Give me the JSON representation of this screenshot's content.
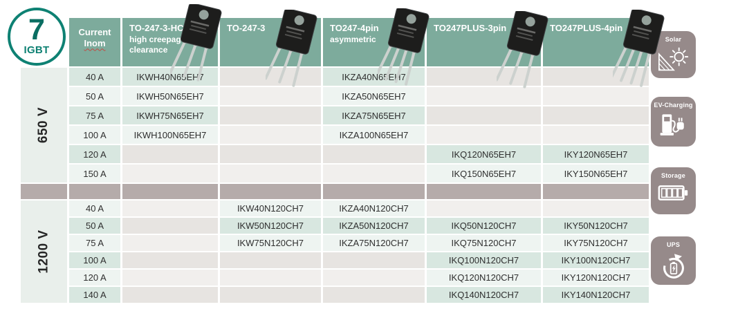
{
  "badge": {
    "number": "7",
    "label": "IGBT"
  },
  "table": {
    "header": {
      "current_line1": "Current",
      "current_line2": "Inom"
    },
    "columns": [
      {
        "id": "to-247-3-hcc",
        "label": "TO-247-3-HCC",
        "sublines": [
          "high creepage,",
          "high clearance"
        ],
        "pins": 3
      },
      {
        "id": "to-247-3",
        "label": "TO-247-3",
        "sublines": [],
        "pins": 3
      },
      {
        "id": "to247-4pin",
        "label": "TO247-4pin",
        "sublines": [
          "asymmetric"
        ],
        "pins": 4
      },
      {
        "id": "to247plus-3pin",
        "label": "TO247PLUS-3pin",
        "sublines": [],
        "pins": 3
      },
      {
        "id": "to247plus-4pin",
        "label": "TO247PLUS-4pin",
        "sublines": [],
        "pins": 4
      }
    ],
    "sections": [
      {
        "voltage": "650 V",
        "rows": [
          {
            "current": "40 A",
            "parts": [
              "IKWH40N65EH7",
              "",
              "IKZA40N65EH7",
              "",
              ""
            ]
          },
          {
            "current": "50 A",
            "parts": [
              "IKWH50N65EH7",
              "",
              "IKZA50N65EH7",
              "",
              ""
            ]
          },
          {
            "current": "75 A",
            "parts": [
              "IKWH75N65EH7",
              "",
              "IKZA75N65EH7",
              "",
              ""
            ]
          },
          {
            "current": "100 A",
            "parts": [
              "IKWH100N65EH7",
              "",
              "IKZA100N65EH7",
              "",
              ""
            ]
          },
          {
            "current": "120 A",
            "parts": [
              "",
              "",
              "",
              "IKQ120N65EH7",
              "IKY120N65EH7"
            ]
          },
          {
            "current": "150 A",
            "parts": [
              "",
              "",
              "",
              "IKQ150N65EH7",
              "IKY150N65EH7"
            ]
          }
        ]
      },
      {
        "voltage": "1200 V",
        "rows": [
          {
            "current": "40 A",
            "parts": [
              "",
              "IKW40N120CH7",
              "IKZA40N120CH7",
              "",
              ""
            ]
          },
          {
            "current": "50 A",
            "parts": [
              "",
              "IKW50N120CH7",
              "IKZA50N120CH7",
              "IKQ50N120CH7",
              "IKY50N120CH7"
            ]
          },
          {
            "current": "75 A",
            "parts": [
              "",
              "IKW75N120CH7",
              "IKZA75N120CH7",
              "IKQ75N120CH7",
              "IKY75N120CH7"
            ]
          },
          {
            "current": "100 A",
            "parts": [
              "",
              "",
              "",
              "IKQ100N120CH7",
              "IKY100N120CH7"
            ]
          },
          {
            "current": "120 A",
            "parts": [
              "",
              "",
              "",
              "IKQ120N120CH7",
              "IKY120N120CH7"
            ]
          },
          {
            "current": "140 A",
            "parts": [
              "",
              "",
              "",
              "IKQ140N120CH7",
              "IKY140N120CH7"
            ]
          }
        ]
      }
    ]
  },
  "applications": [
    {
      "label": "Solar",
      "icon": "solar-icon"
    },
    {
      "label": "EV-Charging",
      "icon": "ev-charging-icon"
    },
    {
      "label": "Storage",
      "icon": "storage-icon"
    },
    {
      "label": "UPS",
      "icon": "ups-icon"
    }
  ],
  "colors": {
    "header_green": "#7dab9c",
    "row_mint": "#d8e7e0",
    "row_pale": "#eef4f1",
    "empty_grey": "#e7e4e1",
    "empty_pale_grey": "#f1efed",
    "divider_mauve": "#b5abaa",
    "voltage_cell": "#e9efeb",
    "tile_mauve": "#968a8a",
    "badge_teal": "#0e8173",
    "inom_underline_red": "#c14b42",
    "text_dark": "#2e2e2e"
  }
}
